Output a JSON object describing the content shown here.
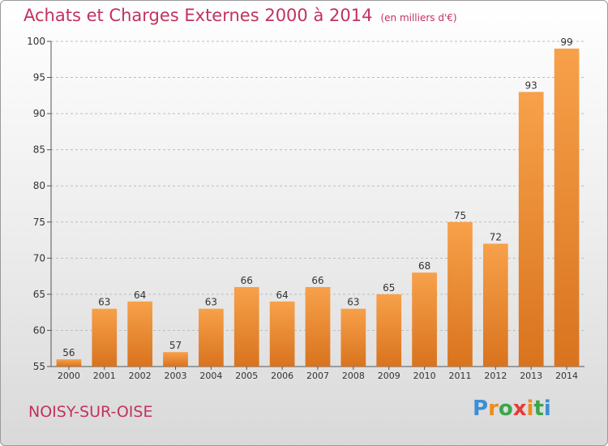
{
  "header": {
    "title": "Achats et Charges Externes 2000 à 2014",
    "unit": "(en milliers d'€)"
  },
  "footer": {
    "location": "NOISY-SUR-OISE",
    "logo_letters": [
      "P",
      "r",
      "o",
      "x",
      "i",
      "t",
      "i"
    ],
    "logo_colors": [
      "#3a8fd6",
      "#ef8a1e",
      "#3aa64a",
      "#e43b3b",
      "#ef8a1e",
      "#3aa64a",
      "#3a8fd6"
    ]
  },
  "chart_data": {
    "type": "bar",
    "categories": [
      "2000",
      "2001",
      "2002",
      "2003",
      "2004",
      "2005",
      "2006",
      "2007",
      "2008",
      "2009",
      "2010",
      "2011",
      "2012",
      "2013",
      "2014"
    ],
    "values": [
      56,
      63,
      64,
      57,
      63,
      66,
      64,
      66,
      63,
      65,
      68,
      75,
      72,
      93,
      99
    ],
    "ylim": [
      55,
      100
    ],
    "yticks": [
      55,
      60,
      65,
      70,
      75,
      80,
      85,
      90,
      95,
      100
    ],
    "grid": "horizontal dashed",
    "bar_color_light": "#f7a14a",
    "bar_color_dark": "#d9731e",
    "title": "Achats et Charges Externes 2000 à 2014",
    "xlabel": "",
    "ylabel": ""
  }
}
